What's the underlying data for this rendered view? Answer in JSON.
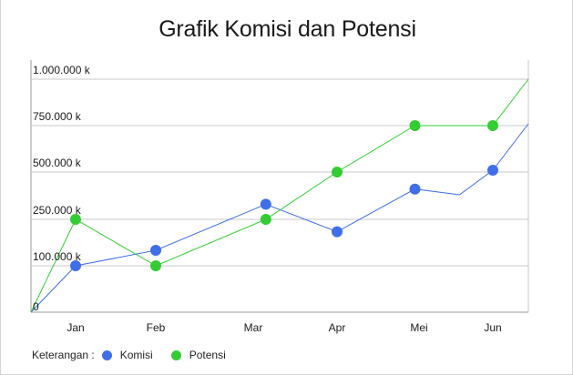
{
  "colors": {
    "komisi": "#3f6ee8",
    "potensi": "#33cc33",
    "grid": "#c8c8c8",
    "axis": "#9a9a9a",
    "text": "#1a1a1a"
  },
  "legend": {
    "label": "Keterangan :",
    "items": [
      "Komisi",
      "Potensi"
    ]
  },
  "chart_data": {
    "type": "line",
    "title": "Grafik Komisi dan Potensi",
    "xlabel": "",
    "ylabel": "",
    "categories": [
      "Jan",
      "Feb",
      "Mar",
      "Apr",
      "Mei",
      "Jun"
    ],
    "y_ticks": [
      {
        "value": 0,
        "label": "0"
      },
      {
        "value": 100000,
        "label": "100.000 k"
      },
      {
        "value": 250000,
        "label": "250.000 k"
      },
      {
        "value": 500000,
        "label": "500.000 k"
      },
      {
        "value": 750000,
        "label": "750.000 k"
      },
      {
        "value": 1000000,
        "label": "1.000.000 k"
      }
    ],
    "ylim": [
      0,
      1000000
    ],
    "x_range": [
      -0.55,
      5.45
    ],
    "grid": true,
    "legend_position": "bottom-left",
    "series": [
      {
        "name": "Komisi",
        "color_key": "komisi",
        "points": [
          {
            "x": -0.55,
            "y": 0,
            "marker": false
          },
          {
            "x": 0,
            "y": 100000,
            "marker": true
          },
          {
            "x": 1,
            "y": 150000,
            "marker": true
          },
          {
            "x": 2.15,
            "y": 330000,
            "marker": true
          },
          {
            "x": 3,
            "y": 210000,
            "marker": true
          },
          {
            "x": 3.95,
            "y": 410000,
            "marker": true
          },
          {
            "x": 4.55,
            "y": 380000,
            "marker": false
          },
          {
            "x": 5,
            "y": 510000,
            "marker": true
          },
          {
            "x": 5.45,
            "y": 760000,
            "marker": false
          }
        ]
      },
      {
        "name": "Potensi",
        "color_key": "potensi",
        "points": [
          {
            "x": -0.55,
            "y": 0,
            "marker": false
          },
          {
            "x": 0,
            "y": 250000,
            "marker": true
          },
          {
            "x": 1,
            "y": 100000,
            "marker": true
          },
          {
            "x": 2.15,
            "y": 250000,
            "marker": true
          },
          {
            "x": 3,
            "y": 500000,
            "marker": true
          },
          {
            "x": 3.95,
            "y": 750000,
            "marker": true
          },
          {
            "x": 5,
            "y": 750000,
            "marker": true
          },
          {
            "x": 5.45,
            "y": 1000000,
            "marker": false
          }
        ]
      }
    ]
  }
}
